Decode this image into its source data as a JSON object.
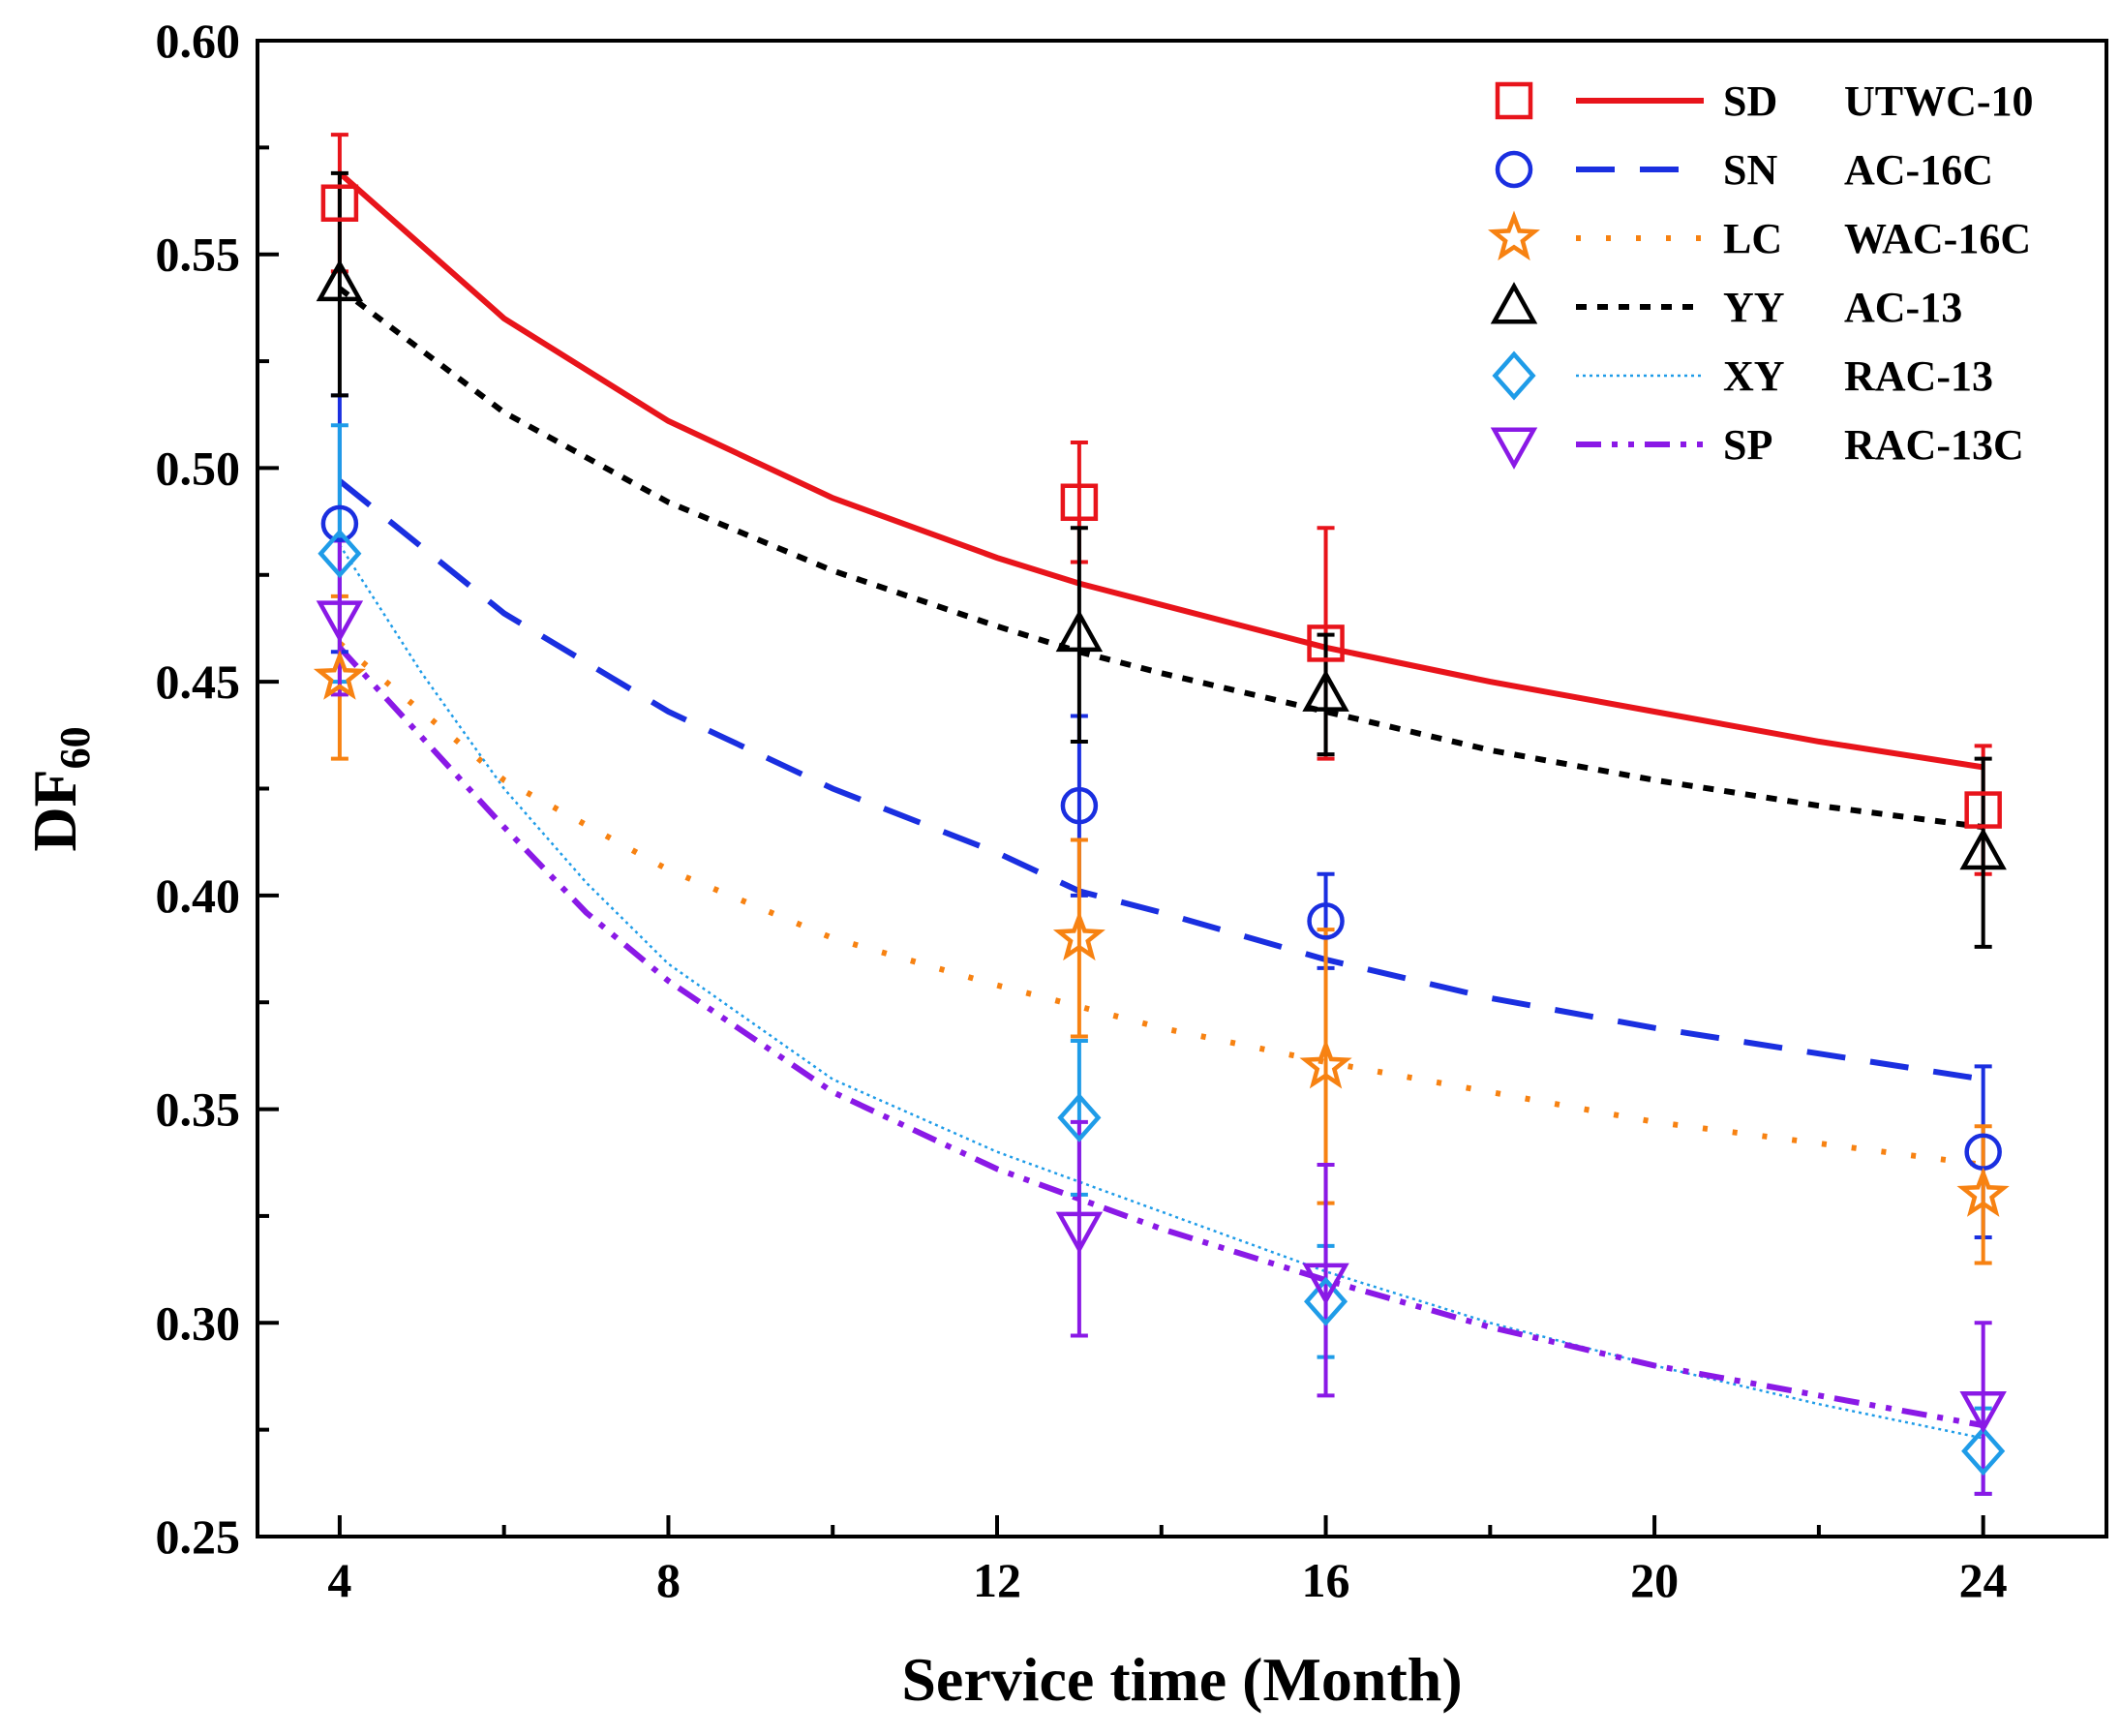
{
  "chart_data": {
    "type": "line",
    "title": "",
    "xlabel": "Service time (Month)",
    "ylabel_main": "DF",
    "ylabel_sub": "60",
    "xlim": [
      3,
      25.5
    ],
    "ylim": [
      0.25,
      0.6
    ],
    "xticks": [
      4,
      8,
      12,
      16,
      20,
      24
    ],
    "xtick_labels": [
      "4",
      "8",
      "12",
      "16",
      "20",
      "24"
    ],
    "yticks": [
      0.25,
      0.3,
      0.35,
      0.4,
      0.45,
      0.5,
      0.55,
      0.6
    ],
    "ytick_labels": [
      "0.25",
      "0.30",
      "0.35",
      "0.40",
      "0.45",
      "0.50",
      "0.55",
      "0.60"
    ],
    "legend_position": "top-right",
    "x": [
      4,
      13,
      16,
      24
    ],
    "series": [
      {
        "code": "SD",
        "name": "UTWC-10",
        "color": "#e8141b",
        "marker": "square",
        "line": "solid",
        "values": [
          0.562,
          0.492,
          0.459,
          0.42
        ],
        "errors": [
          0.016,
          0.014,
          0.027,
          0.015
        ],
        "fit_x": [
          4,
          6,
          8,
          10,
          12,
          13,
          14,
          16,
          18,
          20,
          22,
          24
        ],
        "fit_y": [
          0.569,
          0.535,
          0.511,
          0.493,
          0.479,
          0.473,
          0.468,
          0.458,
          0.45,
          0.443,
          0.436,
          0.43
        ]
      },
      {
        "code": "SN",
        "name": "AC-16C",
        "color": "#1a2fe0",
        "marker": "circle",
        "line": "dash",
        "values": [
          0.487,
          0.421,
          0.394,
          0.34
        ],
        "errors": [
          0.03,
          0.021,
          0.011,
          0.02
        ],
        "fit_x": [
          4,
          6,
          8,
          10,
          12,
          13,
          14,
          16,
          18,
          20,
          22,
          24
        ],
        "fit_y": [
          0.497,
          0.466,
          0.443,
          0.425,
          0.41,
          0.401,
          0.396,
          0.385,
          0.376,
          0.369,
          0.363,
          0.357
        ]
      },
      {
        "code": "LC",
        "name": "WAC-16C",
        "color": "#f78212",
        "marker": "star",
        "line": "dot",
        "values": [
          0.451,
          0.39,
          0.36,
          0.33
        ],
        "errors": [
          0.019,
          0.023,
          0.032,
          0.016
        ],
        "fit_x": [
          4,
          6,
          8,
          10,
          12,
          13,
          14,
          16,
          18,
          20,
          22,
          24
        ],
        "fit_y": [
          0.459,
          0.427,
          0.406,
          0.39,
          0.379,
          0.374,
          0.369,
          0.361,
          0.354,
          0.347,
          0.342,
          0.337
        ]
      },
      {
        "code": "YY",
        "name": "AC-13",
        "color": "#000000",
        "marker": "triangle-up",
        "line": "short-dash",
        "values": [
          0.543,
          0.461,
          0.447,
          0.41
        ],
        "errors": [
          0.026,
          0.025,
          0.014,
          0.022
        ],
        "fit_x": [
          4,
          6,
          8,
          10,
          12,
          13,
          14,
          16,
          18,
          20,
          22,
          24
        ],
        "fit_y": [
          0.542,
          0.513,
          0.492,
          0.476,
          0.463,
          0.457,
          0.452,
          0.443,
          0.434,
          0.427,
          0.421,
          0.416
        ]
      },
      {
        "code": "XY",
        "name": "RAC-13",
        "color": "#1f9ce8",
        "marker": "diamond",
        "line": "fine-dot",
        "values": [
          0.48,
          0.348,
          0.305,
          0.27
        ],
        "errors": [
          0.03,
          0.018,
          0.013,
          0.01
        ],
        "fit_x": [
          4,
          5,
          6,
          7,
          8,
          10,
          12,
          13,
          14,
          16,
          18,
          20,
          22,
          24
        ],
        "fit_y": [
          0.482,
          0.452,
          0.425,
          0.403,
          0.384,
          0.357,
          0.34,
          0.333,
          0.326,
          0.312,
          0.3,
          0.29,
          0.281,
          0.273
        ]
      },
      {
        "code": "SP",
        "name": "RAC-13C",
        "color": "#8a19e6",
        "marker": "triangle-down",
        "line": "dash-dot-dot",
        "values": [
          0.465,
          0.322,
          0.31,
          0.28
        ],
        "errors": [
          0.018,
          0.025,
          0.027,
          0.02
        ],
        "fit_x": [
          4,
          5,
          6,
          7,
          8,
          10,
          12,
          13,
          14,
          16,
          18,
          20,
          22,
          24
        ],
        "fit_y": [
          0.458,
          0.437,
          0.416,
          0.396,
          0.38,
          0.354,
          0.336,
          0.329,
          0.322,
          0.31,
          0.299,
          0.29,
          0.283,
          0.276
        ]
      }
    ]
  }
}
